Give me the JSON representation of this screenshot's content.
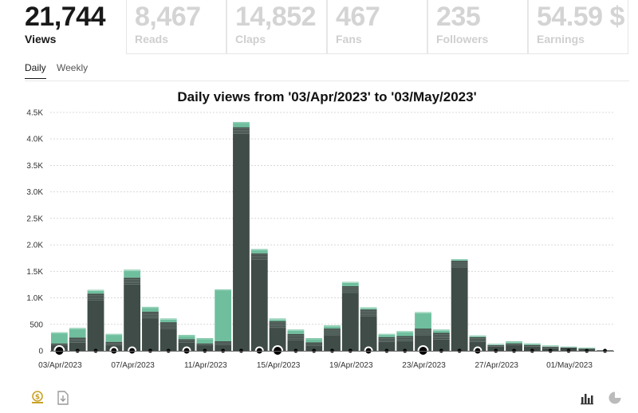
{
  "stats": [
    {
      "value": "21,744",
      "label": "Views",
      "active": true
    },
    {
      "value": "8,467",
      "label": "Reads",
      "active": false
    },
    {
      "value": "14,852",
      "label": "Claps",
      "active": false
    },
    {
      "value": "467",
      "label": "Fans",
      "active": false
    },
    {
      "value": "235",
      "label": "Followers",
      "active": false
    },
    {
      "value": "54.59 $",
      "label": "Earnings",
      "active": false
    }
  ],
  "tabs": {
    "daily": "Daily",
    "weekly": "Weekly"
  },
  "icons": {
    "coin": "dollar-coin-icon",
    "download": "download-icon",
    "bar_chart": "bar-chart-icon",
    "pie_chart": "pie-chart-icon"
  },
  "colors": {
    "dark_bar": "#3f4c47",
    "light_bar": "#6fbf9e",
    "gold": "#c9a227"
  },
  "chart_data": {
    "type": "bar",
    "stacked": true,
    "title": "Daily views from '03/Apr/2023' to '03/May/2023'",
    "ylim": [
      0,
      4500
    ],
    "yticks": [
      0,
      500,
      1000,
      1500,
      2000,
      2500,
      3000,
      3500,
      4000,
      4500
    ],
    "ytick_labels": [
      "0",
      "500",
      "1.0K",
      "1.5K",
      "2.0K",
      "2.5K",
      "3.0K",
      "3.5K",
      "4.0K",
      "4.5K"
    ],
    "grid": true,
    "xtick_labels": [
      {
        "index": 0,
        "label": "03/Apr/2023"
      },
      {
        "index": 4,
        "label": "07/Apr/2023"
      },
      {
        "index": 8,
        "label": "11/Apr/2023"
      },
      {
        "index": 12,
        "label": "15/Apr/2023"
      },
      {
        "index": 16,
        "label": "19/Apr/2023"
      },
      {
        "index": 20,
        "label": "23/Apr/2023"
      },
      {
        "index": 24,
        "label": "27/Apr/2023"
      },
      {
        "index": 28,
        "label": "01/May/2023"
      }
    ],
    "categories": [
      "03/Apr/2023",
      "04/Apr/2023",
      "05/Apr/2023",
      "06/Apr/2023",
      "07/Apr/2023",
      "08/Apr/2023",
      "09/Apr/2023",
      "10/Apr/2023",
      "11/Apr/2023",
      "12/Apr/2023",
      "13/Apr/2023",
      "14/Apr/2023",
      "15/Apr/2023",
      "16/Apr/2023",
      "17/Apr/2023",
      "18/Apr/2023",
      "19/Apr/2023",
      "20/Apr/2023",
      "21/Apr/2023",
      "22/Apr/2023",
      "23/Apr/2023",
      "24/Apr/2023",
      "25/Apr/2023",
      "26/Apr/2023",
      "27/Apr/2023",
      "28/Apr/2023",
      "29/Apr/2023",
      "30/Apr/2023",
      "01/May/2023",
      "02/May/2023",
      "03/May/2023"
    ],
    "series": [
      {
        "values": [
          140,
          250,
          1080,
          170,
          1380,
          740,
          540,
          220,
          140,
          180,
          4220,
          1840,
          560,
          320,
          160,
          420,
          1220,
          780,
          260,
          280,
          420,
          340,
          1700,
          260,
          110,
          140,
          110,
          80,
          70,
          50,
          10
        ]
      },
      {
        "values": [
          210,
          180,
          70,
          150,
          150,
          90,
          70,
          80,
          100,
          980,
          100,
          80,
          50,
          80,
          80,
          60,
          80,
          40,
          60,
          90,
          310,
          60,
          30,
          30,
          20,
          40,
          30,
          20,
          10,
          10,
          0
        ]
      }
    ],
    "dot_sizes": [
      "l",
      "s",
      "s",
      "m",
      "m",
      "s",
      "s",
      "m",
      "s",
      "s",
      "s",
      "m",
      "l",
      "s",
      "s",
      "s",
      "s",
      "m",
      "s",
      "s",
      "l",
      "s",
      "s",
      "m",
      "s",
      "s",
      "s",
      "s",
      "s",
      "s",
      "s"
    ]
  }
}
